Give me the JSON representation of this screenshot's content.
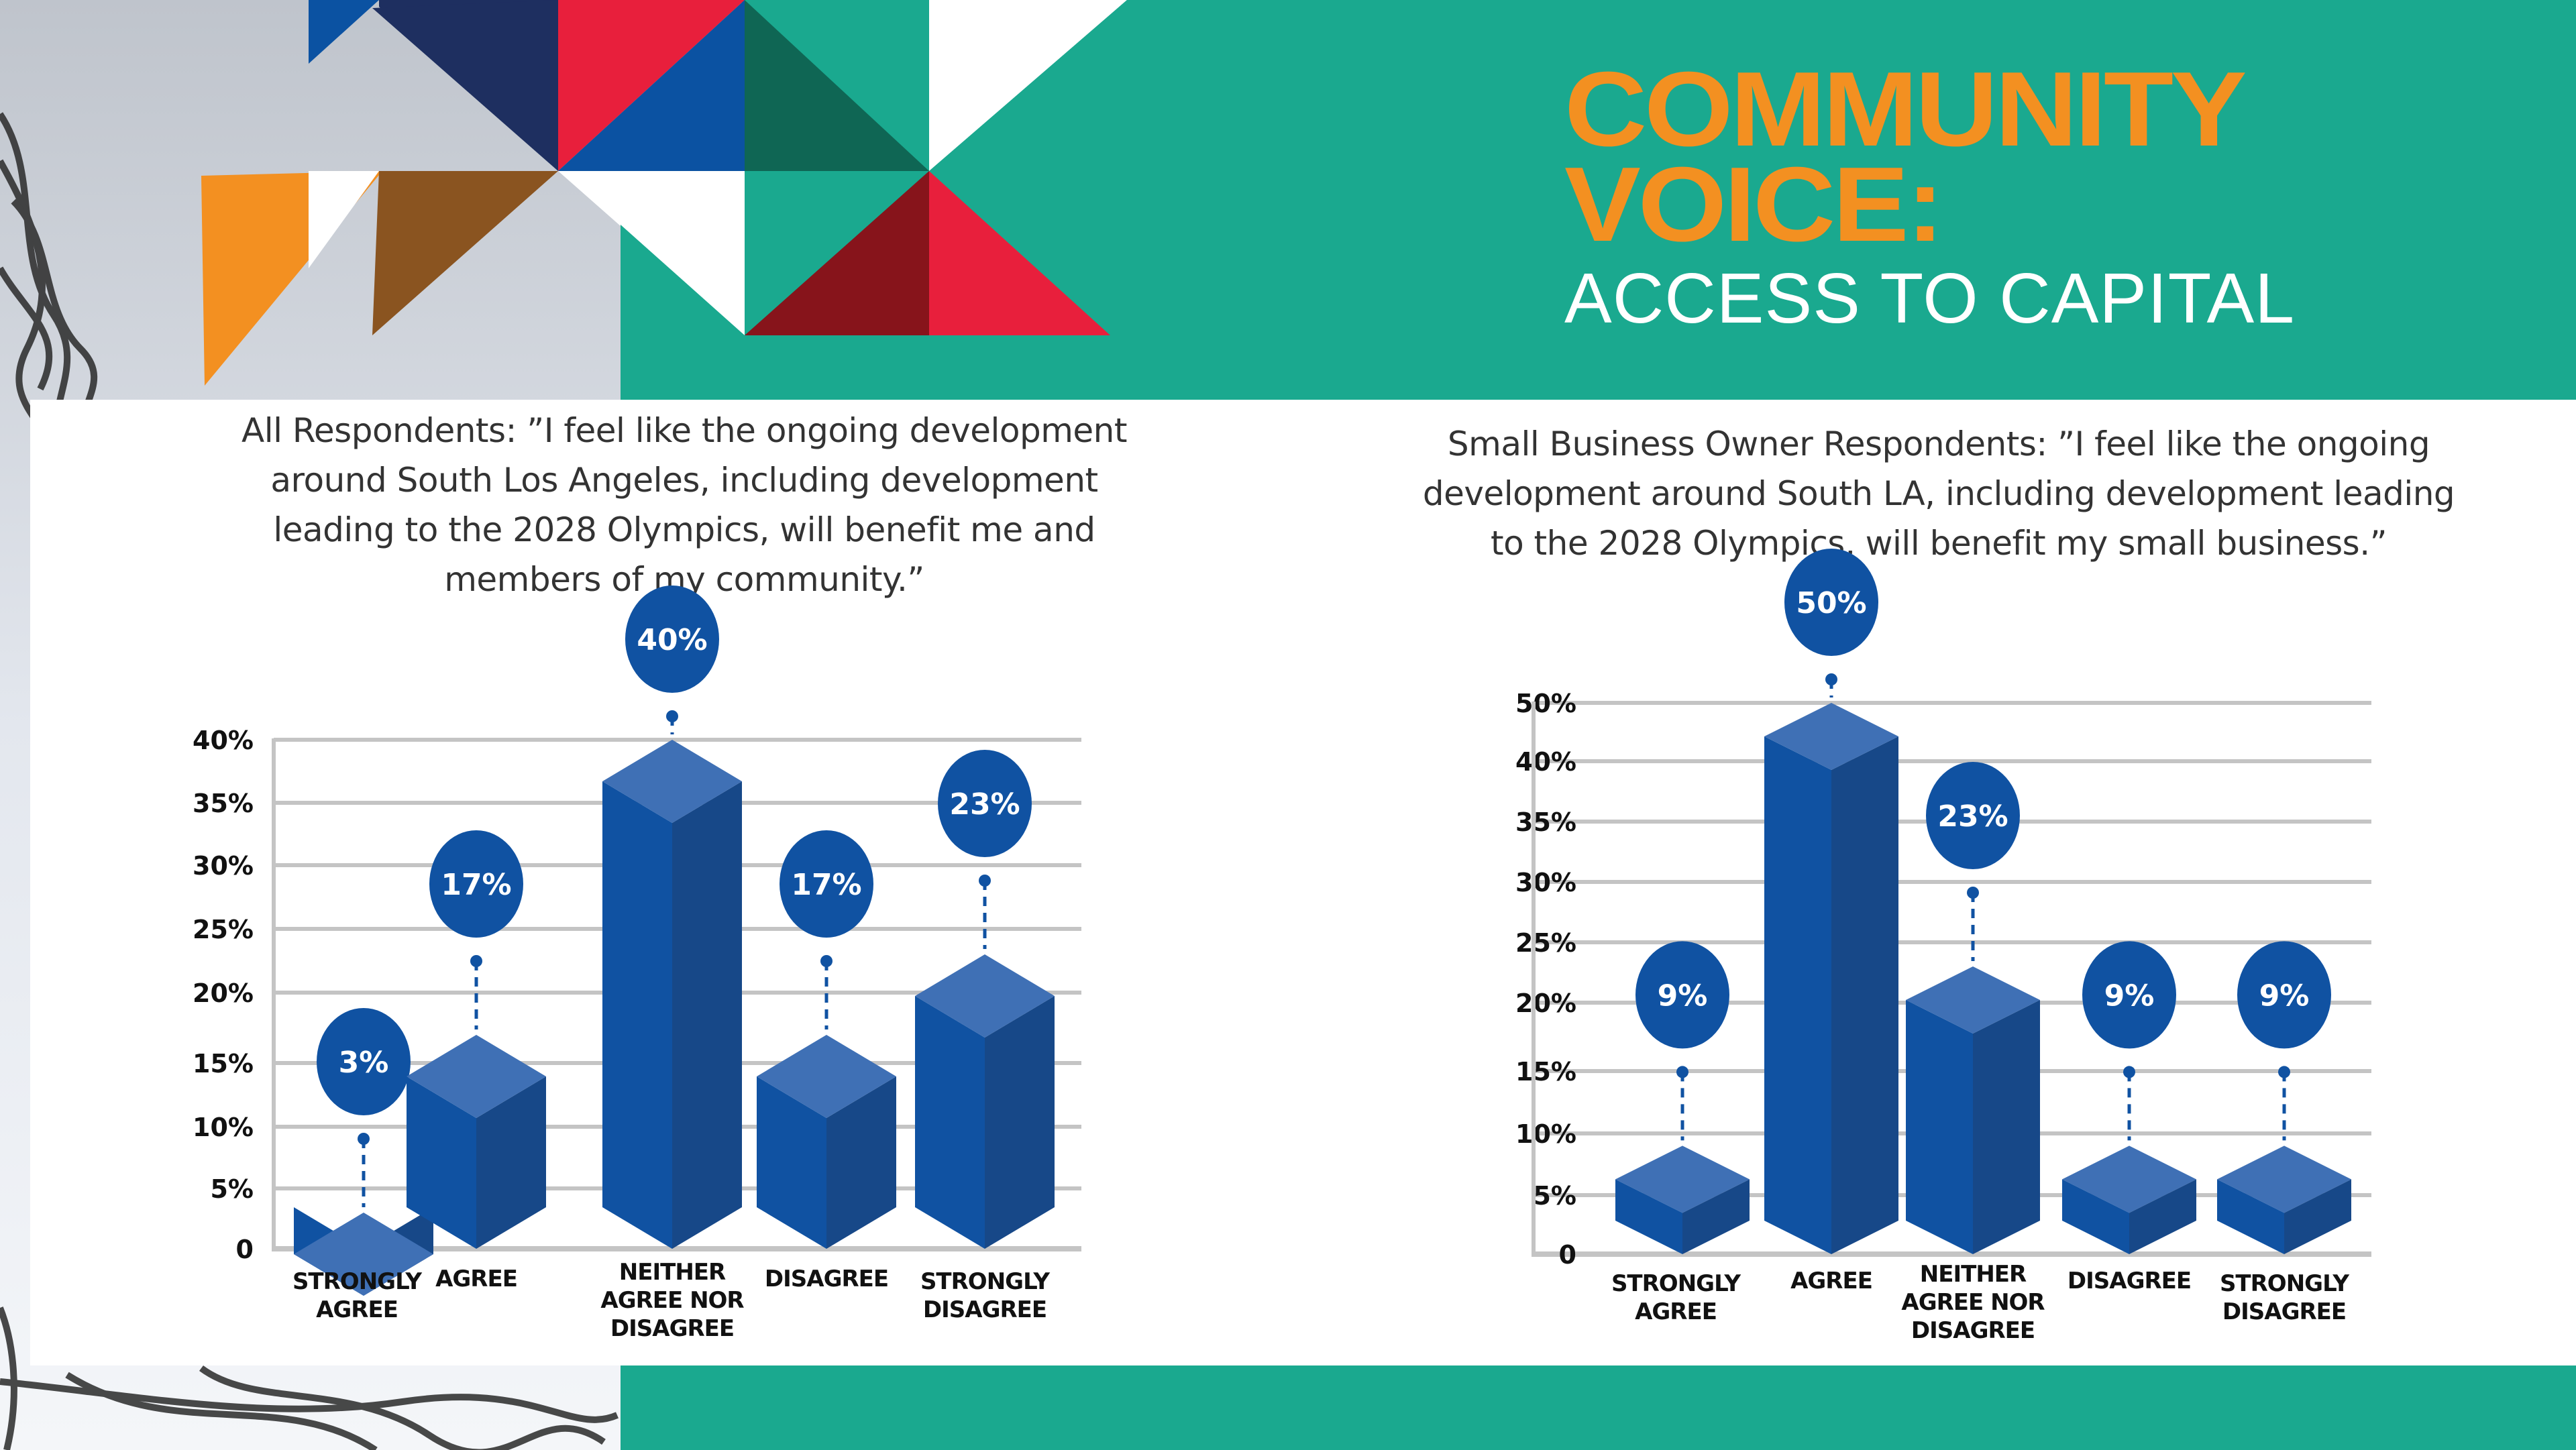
{
  "header": {
    "title_line1": "COMMUNITY",
    "title_line2": "VOICE:",
    "subtitle": "ACCESS TO CAPITAL"
  },
  "colors": {
    "teal": "#1aa98f",
    "orange": "#f39021",
    "bar_front": "#1052a2",
    "bar_side": "#174888",
    "bar_top": "#3f70b5",
    "grid": "#c4c4c4",
    "navy": "#1e2f60",
    "red": "#e81f3c",
    "royal_blue": "#0b52a2",
    "dark_green": "#0f6654",
    "brown": "#8a5420",
    "dark_red": "#87141b"
  },
  "chart_data": [
    {
      "type": "bar",
      "title": "All Respondents: ”I feel like the ongoing development around South Los Angeles, including development leading to the 2028 Olympics, will benefit me and members of my community.”",
      "title_lines": [
        "All Respondents: ”I feel like the ongoing development",
        "around South Los Angeles, including development",
        "leading to the 2028 Olympics, will benefit me and",
        "members of my community.”"
      ],
      "categories": [
        "STRONGLY AGREE",
        "AGREE",
        "NEITHER AGREE NOR DISAGREE",
        "DISAGREE",
        "STRONGLY DISAGREE"
      ],
      "category_lines": [
        [
          "STRONGLY",
          "AGREE"
        ],
        [
          "AGREE"
        ],
        [
          "NEITHER",
          "AGREE NOR",
          "DISAGREE"
        ],
        [
          "DISAGREE"
        ],
        [
          "STRONGLY",
          "DISAGREE"
        ]
      ],
      "values": [
        3,
        17,
        40,
        17,
        23
      ],
      "data_labels": [
        "3%",
        "17%",
        "40%",
        "17%",
        "23%"
      ],
      "yticks": [
        0,
        5,
        10,
        15,
        20,
        25,
        30,
        35,
        40
      ],
      "ytick_labels": [
        "0",
        "5%",
        "10%",
        "15%",
        "20%",
        "25%",
        "30%",
        "35%",
        "40%"
      ],
      "ylim": [
        0,
        40
      ],
      "xlabel": "",
      "ylabel": "",
      "grid": true,
      "legend": "none"
    },
    {
      "type": "bar",
      "title": "Small Business Owner Respondents: ”I feel like the ongoing development around South LA, including development leading to the 2028 Olympics, will benefit my small business.”",
      "title_lines": [
        "Small Business Owner Respondents: ”I feel like the ongoing",
        "development around South LA, including development leading",
        "to the 2028 Olympics, will benefit my small business.”"
      ],
      "categories": [
        "STRONGLY AGREE",
        "AGREE",
        "NEITHER AGREE NOR DISAGREE",
        "DISAGREE",
        "STRONGLY DISAGREE"
      ],
      "category_lines": [
        [
          "STRONGLY",
          "AGREE"
        ],
        [
          "AGREE"
        ],
        [
          "NEITHER",
          "AGREE NOR",
          "DISAGREE"
        ],
        [
          "DISAGREE"
        ],
        [
          "STRONGLY",
          "DISAGREE"
        ]
      ],
      "values": [
        9,
        50,
        23,
        9,
        9
      ],
      "data_labels": [
        "9%",
        "50%",
        "23%",
        "9%",
        "9%"
      ],
      "yticks": [
        0,
        5,
        10,
        15,
        20,
        25,
        30,
        35,
        40,
        50
      ],
      "ytick_labels": [
        "0",
        "5%",
        "10%",
        "15%",
        "20%",
        "25%",
        "30%",
        "35%",
        "40%",
        "50%"
      ],
      "ylim": [
        0,
        50
      ],
      "xlabel": "",
      "ylabel": "",
      "grid": true,
      "legend": "none"
    }
  ]
}
